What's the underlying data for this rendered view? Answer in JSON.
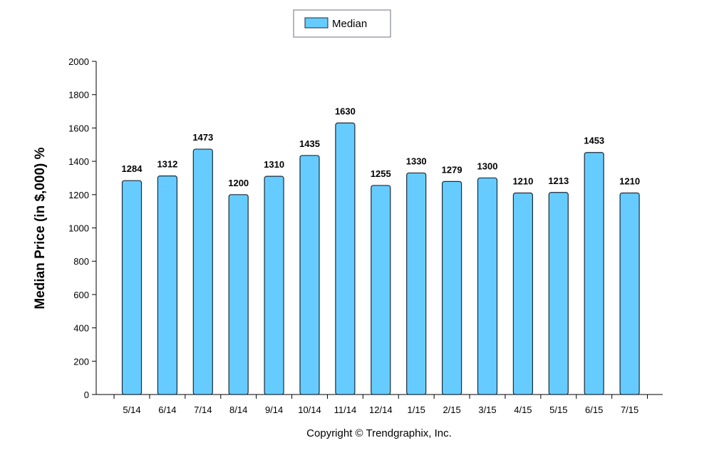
{
  "chart_data": {
    "type": "bar",
    "categories": [
      "5/14",
      "6/14",
      "7/14",
      "8/14",
      "9/14",
      "10/14",
      "11/14",
      "12/14",
      "1/15",
      "2/15",
      "3/15",
      "4/15",
      "5/15",
      "6/15",
      "7/15"
    ],
    "series": [
      {
        "name": "Median",
        "values": [
          1284,
          1312,
          1473,
          1200,
          1310,
          1435,
          1630,
          1255,
          1330,
          1279,
          1300,
          1210,
          1213,
          1453,
          1210
        ]
      }
    ],
    "xlabel": "",
    "ylabel": "Median Price (in $,000) %",
    "ylim": [
      0,
      2000
    ],
    "yticks": [
      0,
      200,
      400,
      600,
      800,
      1000,
      1200,
      1400,
      1600,
      1800,
      2000
    ],
    "legend_position": "top-center",
    "grid": false,
    "bar_color": "#66ccff",
    "bar_edge_color": "#1a2a3a"
  },
  "footer": {
    "copyright": "Copyright © Trendgraphix, Inc."
  }
}
